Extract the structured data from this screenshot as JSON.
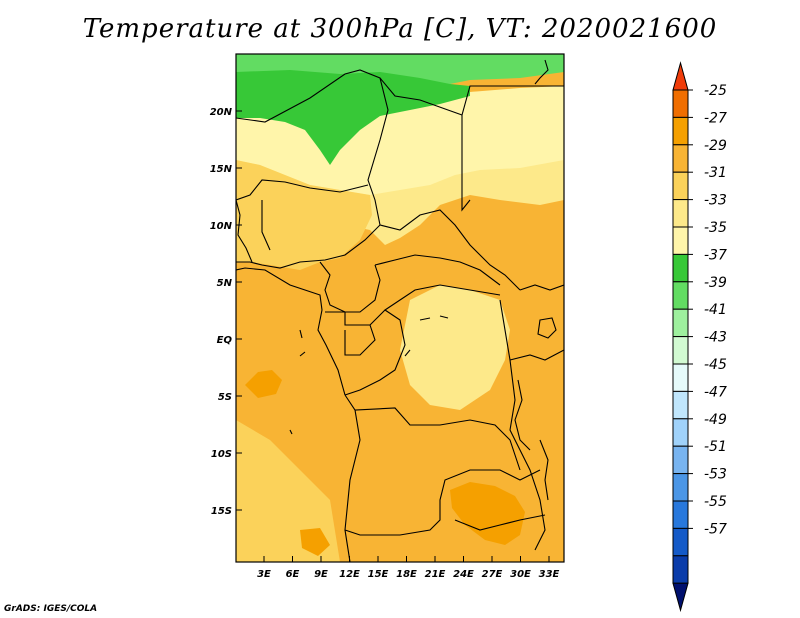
{
  "title": "Temperature at 300hPa [C], VT: 2020021600",
  "credit": "GrADS: IGES/COLA",
  "map": {
    "lat_ticks": [
      "20N",
      "15N",
      "10N",
      "5N",
      "EQ",
      "5S",
      "10S",
      "15S"
    ],
    "lon_ticks": [
      "3E",
      "6E",
      "9E",
      "12E",
      "15E",
      "18E",
      "21E",
      "24E",
      "27E",
      "30E",
      "33E"
    ]
  },
  "colorbar": {
    "labels": [
      "-25",
      "-27",
      "-29",
      "-31",
      "-33",
      "-35",
      "-37",
      "-39",
      "-41",
      "-43",
      "-45",
      "-47",
      "-49",
      "-51",
      "-53",
      "-55",
      "-57"
    ],
    "colors": [
      "#f03c0a",
      "#f06e00",
      "#f5a000",
      "#f8b434",
      "#fbd25a",
      "#fde98a",
      "#fff5aa",
      "#37c837",
      "#62dc62",
      "#9ef09e",
      "#d2fad2",
      "#e6fafa",
      "#c0e6fc",
      "#a0d2fa",
      "#78b4f0",
      "#4b96e6",
      "#2878dc",
      "#145ac8",
      "#0a3caa",
      "#00106e"
    ]
  },
  "colors": {
    "darkest_orange": "#f5a000",
    "orange": "#f8b434",
    "light_orange": "#fbd25a",
    "pale_yellow": "#fde98a",
    "lightest_yellow": "#fff5aa",
    "green": "#37c837",
    "light_green": "#62dc62"
  }
}
